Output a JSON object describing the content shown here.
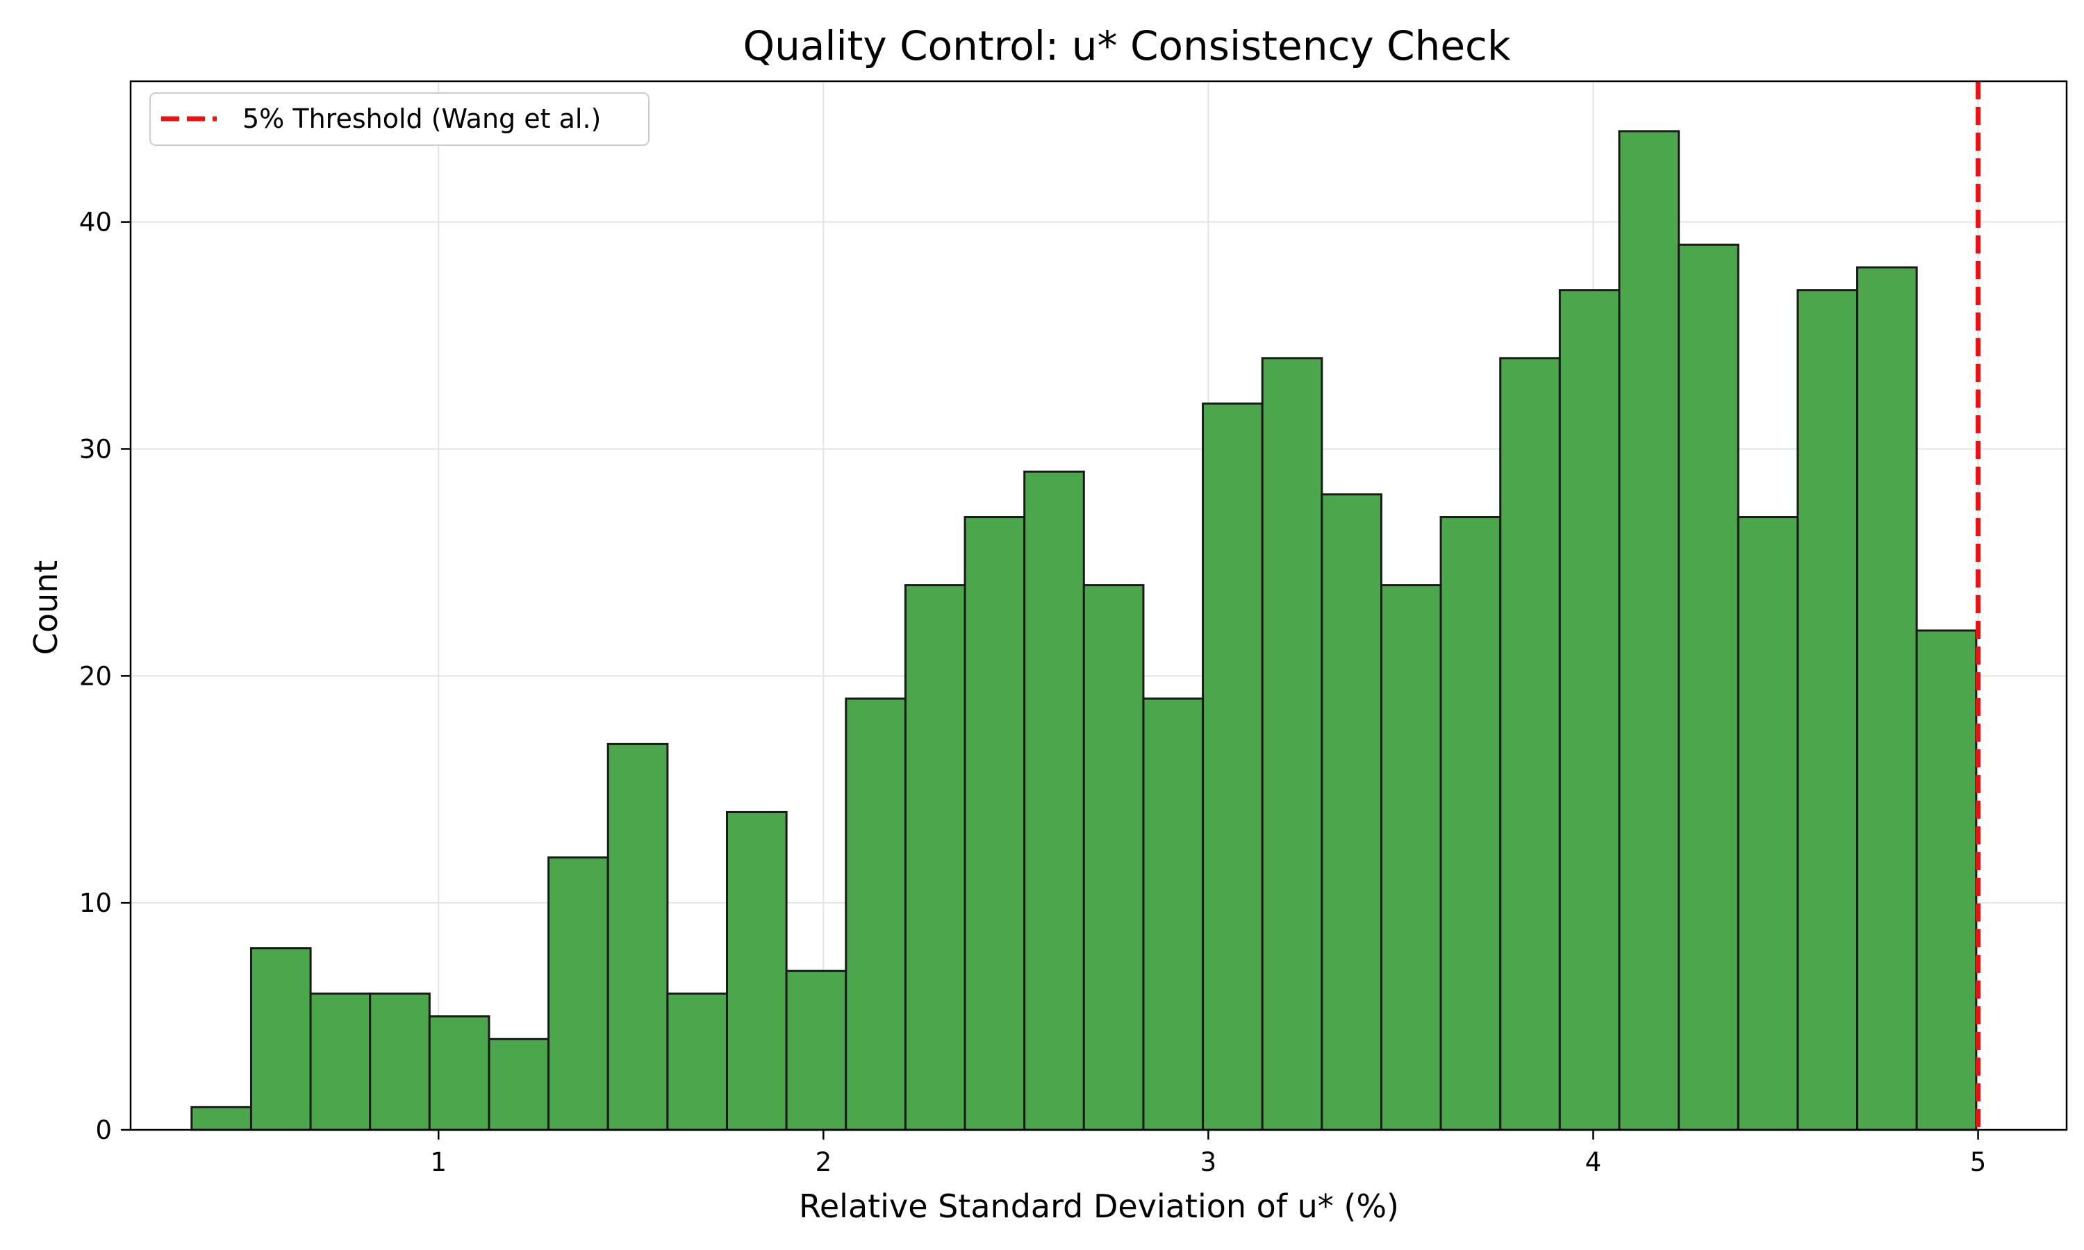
{
  "chart_data": {
    "type": "bar",
    "subtype": "histogram",
    "title": "Quality Control: u* Consistency Check",
    "xlabel": "Relative Standard Deviation of u* (%)",
    "ylabel": "Count",
    "xlim": [
      0.2,
      5.23
    ],
    "ylim": [
      0,
      46.2
    ],
    "xticks": [
      1,
      2,
      3,
      4,
      5
    ],
    "yticks": [
      0,
      10,
      20,
      30,
      40
    ],
    "grid": true,
    "legend": "top-left",
    "bins": {
      "start": 0.3585,
      "width": 0.15455,
      "counts": [
        1,
        8,
        6,
        6,
        5,
        4,
        12,
        17,
        6,
        14,
        7,
        19,
        24,
        27,
        29,
        24,
        19,
        32,
        34,
        28,
        24,
        27,
        34,
        37,
        44,
        39,
        27,
        37,
        38,
        22
      ]
    },
    "bar_color": "#4ca64c",
    "bar_edge_color": "#1a1a1a",
    "threshold": {
      "x": 5,
      "label": "5% Threshold (Wang et al.)",
      "color": "#ee1111",
      "style": "dashed"
    }
  }
}
